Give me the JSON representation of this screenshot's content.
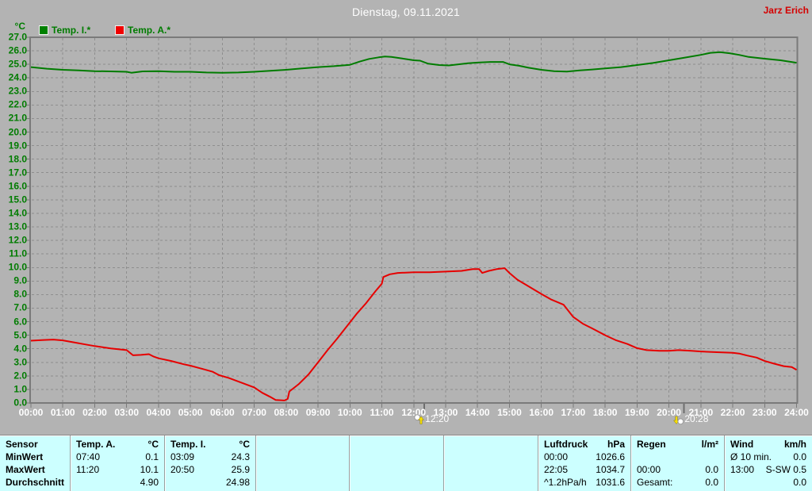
{
  "window": {
    "title": "Dienstag, 09.11.2021",
    "owner": "Jarz Erich"
  },
  "legend": {
    "axis_unit": "°C",
    "items": [
      {
        "label": "Temp. I.*",
        "color": "#007c00"
      },
      {
        "label": "Temp. A.*",
        "color": "#e60000"
      }
    ]
  },
  "chart_data": {
    "type": "line",
    "title": "Dienstag, 09.11.2021",
    "ylabel": "°C",
    "ylim": [
      0,
      27
    ],
    "ytick_step": 1.0,
    "grid": true,
    "background": "#b3b3b3",
    "grid_color": "#8e8e8e",
    "frame_color": "#7a7a7a",
    "yticks": [
      "27.0",
      "26.0",
      "25.0",
      "24.0",
      "23.0",
      "22.0",
      "21.0",
      "20.0",
      "19.0",
      "18.0",
      "17.0",
      "16.0",
      "15.0",
      "14.0",
      "13.0",
      "12.0",
      "11.0",
      "10.0",
      "9.0",
      "8.0",
      "7.0",
      "6.0",
      "5.0",
      "4.0",
      "3.0",
      "2.0",
      "1.0",
      "0.0"
    ],
    "xticks": [
      "00:00",
      "01:00",
      "02:00",
      "03:00",
      "04:00",
      "05:00",
      "06:00",
      "07:00",
      "08:00",
      "09:00",
      "10:00",
      "11:00",
      "12:00",
      "13:00",
      "14:00",
      "15:00",
      "16:00",
      "17:00",
      "18:00",
      "19:00",
      "20:00",
      "21:00",
      "22:00",
      "23:00",
      "24:00"
    ],
    "series": [
      {
        "name": "Temp. I.*",
        "color": "#007c00",
        "unit": "°C",
        "points": [
          [
            0,
            24.8
          ],
          [
            0.5,
            24.68
          ],
          [
            1,
            24.6
          ],
          [
            1.5,
            24.55
          ],
          [
            2,
            24.5
          ],
          [
            2.5,
            24.48
          ],
          [
            3,
            24.45
          ],
          [
            3.15,
            24.38
          ],
          [
            3.5,
            24.48
          ],
          [
            4,
            24.5
          ],
          [
            4.5,
            24.45
          ],
          [
            5,
            24.45
          ],
          [
            5.5,
            24.4
          ],
          [
            6,
            24.38
          ],
          [
            6.5,
            24.4
          ],
          [
            7,
            24.45
          ],
          [
            7.5,
            24.52
          ],
          [
            8,
            24.6
          ],
          [
            8.5,
            24.7
          ],
          [
            9,
            24.8
          ],
          [
            9.5,
            24.87
          ],
          [
            10,
            24.97
          ],
          [
            10.3,
            25.2
          ],
          [
            10.6,
            25.4
          ],
          [
            10.9,
            25.52
          ],
          [
            11.1,
            25.58
          ],
          [
            11.3,
            25.55
          ],
          [
            11.6,
            25.45
          ],
          [
            12,
            25.3
          ],
          [
            12.2,
            25.27
          ],
          [
            12.45,
            25.05
          ],
          [
            12.8,
            24.95
          ],
          [
            13.1,
            24.92
          ],
          [
            13.4,
            25.0
          ],
          [
            13.7,
            25.08
          ],
          [
            14,
            25.13
          ],
          [
            14.4,
            25.18
          ],
          [
            14.8,
            25.18
          ],
          [
            15,
            25.0
          ],
          [
            15.3,
            24.9
          ],
          [
            15.6,
            24.75
          ],
          [
            16,
            24.6
          ],
          [
            16.4,
            24.5
          ],
          [
            16.8,
            24.47
          ],
          [
            17.2,
            24.55
          ],
          [
            17.6,
            24.62
          ],
          [
            18,
            24.7
          ],
          [
            18.5,
            24.8
          ],
          [
            19,
            24.95
          ],
          [
            19.5,
            25.1
          ],
          [
            20,
            25.3
          ],
          [
            20.5,
            25.5
          ],
          [
            21,
            25.7
          ],
          [
            21.3,
            25.85
          ],
          [
            21.6,
            25.9
          ],
          [
            21.9,
            25.82
          ],
          [
            22.2,
            25.7
          ],
          [
            22.5,
            25.55
          ],
          [
            23,
            25.42
          ],
          [
            23.5,
            25.3
          ],
          [
            24,
            25.12
          ]
        ]
      },
      {
        "name": "Temp. A.*",
        "color": "#e60000",
        "unit": "°C",
        "points": [
          [
            0,
            4.6
          ],
          [
            0.4,
            4.65
          ],
          [
            0.7,
            4.68
          ],
          [
            1,
            4.62
          ],
          [
            1.4,
            4.45
          ],
          [
            1.7,
            4.32
          ],
          [
            2,
            4.2
          ],
          [
            2.5,
            4.03
          ],
          [
            3,
            3.9
          ],
          [
            3.2,
            3.52
          ],
          [
            3.45,
            3.55
          ],
          [
            3.7,
            3.6
          ],
          [
            3.85,
            3.42
          ],
          [
            4,
            3.3
          ],
          [
            4.4,
            3.1
          ],
          [
            4.8,
            2.85
          ],
          [
            5,
            2.75
          ],
          [
            5.4,
            2.5
          ],
          [
            5.7,
            2.3
          ],
          [
            5.9,
            2.05
          ],
          [
            6.2,
            1.85
          ],
          [
            6.6,
            1.5
          ],
          [
            7,
            1.15
          ],
          [
            7.25,
            0.75
          ],
          [
            7.5,
            0.45
          ],
          [
            7.67,
            0.22
          ],
          [
            7.95,
            0.18
          ],
          [
            8.05,
            0.3
          ],
          [
            8.1,
            0.85
          ],
          [
            8.4,
            1.4
          ],
          [
            8.7,
            2.1
          ],
          [
            9,
            3.0
          ],
          [
            9.3,
            3.9
          ],
          [
            9.6,
            4.75
          ],
          [
            9.9,
            5.65
          ],
          [
            10.2,
            6.55
          ],
          [
            10.5,
            7.35
          ],
          [
            10.8,
            8.25
          ],
          [
            11,
            8.8
          ],
          [
            11.05,
            9.3
          ],
          [
            11.25,
            9.5
          ],
          [
            11.5,
            9.6
          ],
          [
            12,
            9.65
          ],
          [
            12.5,
            9.65
          ],
          [
            13,
            9.7
          ],
          [
            13.5,
            9.75
          ],
          [
            13.85,
            9.88
          ],
          [
            14.05,
            9.88
          ],
          [
            14.15,
            9.6
          ],
          [
            14.35,
            9.75
          ],
          [
            14.6,
            9.88
          ],
          [
            14.85,
            9.95
          ],
          [
            15,
            9.6
          ],
          [
            15.25,
            9.1
          ],
          [
            15.5,
            8.75
          ],
          [
            16,
            8.05
          ],
          [
            16.3,
            7.65
          ],
          [
            16.7,
            7.25
          ],
          [
            17,
            6.35
          ],
          [
            17.3,
            5.85
          ],
          [
            17.6,
            5.5
          ],
          [
            18,
            5.0
          ],
          [
            18.35,
            4.62
          ],
          [
            18.7,
            4.35
          ],
          [
            19,
            4.05
          ],
          [
            19.3,
            3.9
          ],
          [
            19.7,
            3.85
          ],
          [
            20,
            3.85
          ],
          [
            20.3,
            3.9
          ],
          [
            20.7,
            3.85
          ],
          [
            21,
            3.8
          ],
          [
            21.5,
            3.75
          ],
          [
            22,
            3.7
          ],
          [
            22.2,
            3.65
          ],
          [
            22.45,
            3.5
          ],
          [
            22.75,
            3.35
          ],
          [
            23,
            3.1
          ],
          [
            23.3,
            2.9
          ],
          [
            23.6,
            2.72
          ],
          [
            23.85,
            2.65
          ],
          [
            24,
            2.45
          ]
        ]
      }
    ],
    "markers": [
      {
        "type": "moon-rise",
        "hour": 12.333,
        "label": "12:20"
      },
      {
        "type": "moon-set",
        "hour": 20.467,
        "label": "20:28"
      }
    ]
  },
  "summary_table": {
    "row_labels": [
      "Sensor",
      "MinWert",
      "MaxWert",
      "Durchschnitt"
    ],
    "columns": [
      {
        "id": "temp-a",
        "header": [
          "Temp. A.",
          "°C"
        ],
        "rows": [
          [
            "07:40",
            "0.1"
          ],
          [
            "11:20",
            "10.1"
          ],
          [
            "",
            "4.90"
          ]
        ]
      },
      {
        "id": "temp-i",
        "header": [
          "Temp. I.",
          "°C"
        ],
        "rows": [
          [
            "03:09",
            "24.3"
          ],
          [
            "20:50",
            "25.9"
          ],
          [
            "",
            "24.98"
          ]
        ]
      },
      {
        "id": "empty-1",
        "header": [
          "",
          ""
        ],
        "rows": [
          [
            "",
            ""
          ],
          [
            "",
            ""
          ],
          [
            "",
            ""
          ]
        ]
      },
      {
        "id": "empty-2",
        "header": [
          "",
          ""
        ],
        "rows": [
          [
            "",
            ""
          ],
          [
            "",
            ""
          ],
          [
            "",
            ""
          ]
        ]
      },
      {
        "id": "empty-3",
        "header": [
          "",
          ""
        ],
        "rows": [
          [
            "",
            ""
          ],
          [
            "",
            ""
          ],
          [
            "",
            ""
          ]
        ]
      },
      {
        "id": "luftdruck",
        "header": [
          "Luftdruck",
          "hPa"
        ],
        "rows": [
          [
            "00:00",
            "1026.6"
          ],
          [
            "22:05",
            "1034.7"
          ],
          [
            "^1.2hPa/h",
            "1031.6"
          ]
        ]
      },
      {
        "id": "regen",
        "header": [
          "Regen",
          "l/m²"
        ],
        "rows": [
          [
            "",
            ""
          ],
          [
            "00:00",
            "0.0"
          ],
          [
            "Gesamt:",
            "0.0"
          ]
        ]
      },
      {
        "id": "wind",
        "header": [
          "Wind",
          "km/h"
        ],
        "rows": [
          [
            "Ø 10 min.",
            "0.0"
          ],
          [
            "13:00",
            "S-SW 0.5"
          ],
          [
            "",
            "0.0"
          ]
        ]
      }
    ]
  }
}
